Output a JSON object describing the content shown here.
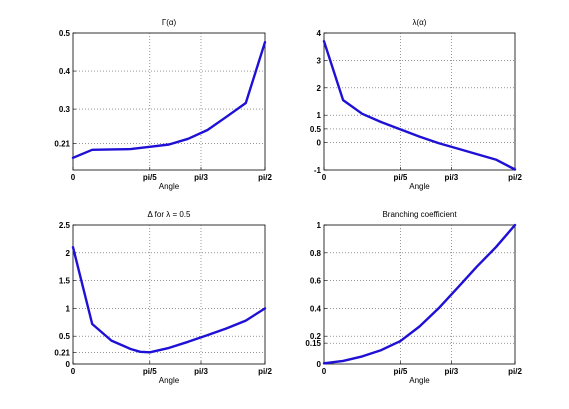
{
  "figure": {
    "line_color": "#1f10d6",
    "background": "#ffffff"
  },
  "chart_data": [
    {
      "id": "gamma",
      "type": "line",
      "title": "Γ(α)",
      "xlabel": "Angle",
      "ylabel": "",
      "grid": true,
      "xlim": [
        0,
        1.5708
      ],
      "ylim": [
        0.14,
        0.5
      ],
      "xticks": [
        {
          "value": 0,
          "label": "0"
        },
        {
          "value": 0.6283,
          "label": "pi/5"
        },
        {
          "value": 1.0472,
          "label": "pi/3"
        },
        {
          "value": 1.5708,
          "label": "pi/2"
        }
      ],
      "yticks": [
        {
          "value": 0.21,
          "label": "0.21"
        },
        {
          "value": 0.3,
          "label": "0.3"
        },
        {
          "value": 0.4,
          "label": "0.4"
        },
        {
          "value": 0.5,
          "label": "0.5"
        }
      ],
      "series": [
        {
          "x": [
            0,
            0.157,
            0.314,
            0.471,
            0.628,
            0.785,
            0.942,
            1.1,
            1.257,
            1.414,
            1.5708
          ],
          "y": [
            0.172,
            0.193,
            0.194,
            0.195,
            0.201,
            0.207,
            0.222,
            0.245,
            0.28,
            0.316,
            0.476
          ]
        }
      ]
    },
    {
      "id": "lambda",
      "type": "line",
      "title": "λ(α)",
      "xlabel": "Angle",
      "ylabel": "",
      "grid": true,
      "xlim": [
        0,
        1.5708
      ],
      "ylim": [
        -1,
        4
      ],
      "xticks": [
        {
          "value": 0,
          "label": "0"
        },
        {
          "value": 0.6283,
          "label": "pi/5"
        },
        {
          "value": 1.0472,
          "label": "pi/3"
        },
        {
          "value": 1.5708,
          "label": "pi/2"
        }
      ],
      "yticks": [
        {
          "value": -1,
          "label": "-1"
        },
        {
          "value": 0,
          "label": "0"
        },
        {
          "value": 0.5,
          "label": "0.5"
        },
        {
          "value": 1,
          "label": "1"
        },
        {
          "value": 2,
          "label": "2"
        },
        {
          "value": 3,
          "label": "3"
        },
        {
          "value": 4,
          "label": "4"
        }
      ],
      "series": [
        {
          "x": [
            0,
            0.157,
            0.314,
            0.471,
            0.628,
            0.785,
            0.942,
            1.1,
            1.257,
            1.414,
            1.5708
          ],
          "y": [
            3.7,
            1.55,
            1.05,
            0.75,
            0.48,
            0.22,
            -0.02,
            -0.22,
            -0.42,
            -0.62,
            -0.98
          ]
        }
      ]
    },
    {
      "id": "delta",
      "type": "line",
      "title": "Δ for λ = 0.5",
      "xlabel": "Angle",
      "ylabel": "",
      "grid": true,
      "xlim": [
        0,
        1.5708
      ],
      "ylim": [
        0,
        2.5
      ],
      "xticks": [
        {
          "value": 0,
          "label": "0"
        },
        {
          "value": 0.6283,
          "label": "pi/5"
        },
        {
          "value": 1.0472,
          "label": "pi/3"
        },
        {
          "value": 1.5708,
          "label": "pi/2"
        }
      ],
      "yticks": [
        {
          "value": 0,
          "label": "0"
        },
        {
          "value": 0.21,
          "label": "0.21"
        },
        {
          "value": 0.5,
          "label": "0.5"
        },
        {
          "value": 1,
          "label": "1"
        },
        {
          "value": 1.5,
          "label": "1.5"
        },
        {
          "value": 2,
          "label": "2"
        },
        {
          "value": 2.5,
          "label": "2.5"
        }
      ],
      "series": [
        {
          "x": [
            0,
            0.157,
            0.314,
            0.471,
            0.55,
            0.628,
            0.785,
            0.942,
            1.1,
            1.257,
            1.414,
            1.5708
          ],
          "y": [
            2.1,
            0.72,
            0.42,
            0.27,
            0.22,
            0.21,
            0.29,
            0.4,
            0.52,
            0.64,
            0.78,
            1.0
          ]
        }
      ]
    },
    {
      "id": "branching",
      "type": "line",
      "title": "Branching coefficient",
      "xlabel": "Angle",
      "ylabel": "",
      "grid": true,
      "xlim": [
        0,
        1.5708
      ],
      "ylim": [
        0,
        1
      ],
      "xticks": [
        {
          "value": 0,
          "label": "0"
        },
        {
          "value": 0.6283,
          "label": "pi/5"
        },
        {
          "value": 1.0472,
          "label": "pi/3"
        },
        {
          "value": 1.5708,
          "label": "pi/2"
        }
      ],
      "yticks": [
        {
          "value": 0,
          "label": "0"
        },
        {
          "value": 0.15,
          "label": "0.15"
        },
        {
          "value": 0.2,
          "label": "0.2"
        },
        {
          "value": 0.4,
          "label": "0.4"
        },
        {
          "value": 0.6,
          "label": "0.6"
        },
        {
          "value": 0.8,
          "label": "0.8"
        },
        {
          "value": 1,
          "label": "1"
        }
      ],
      "series": [
        {
          "x": [
            0,
            0.157,
            0.314,
            0.471,
            0.628,
            0.785,
            0.942,
            1.1,
            1.257,
            1.414,
            1.5708
          ],
          "y": [
            0.005,
            0.022,
            0.055,
            0.1,
            0.165,
            0.27,
            0.4,
            0.55,
            0.7,
            0.84,
            1.0
          ]
        }
      ]
    }
  ]
}
